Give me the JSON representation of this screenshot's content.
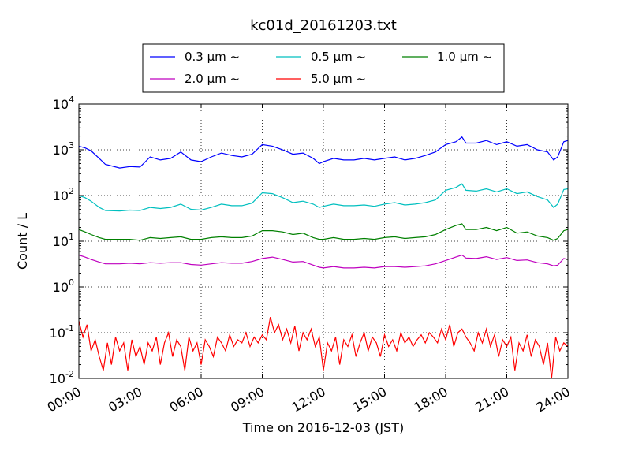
{
  "chart_data": {
    "type": "line",
    "title": "kc01d_20161203.txt",
    "xlabel": "Time on 2016-12-03 (JST)",
    "ylabel": "Count / L",
    "yscale": "log",
    "xlim": [
      0,
      24
    ],
    "ylim": [
      0.01,
      10000
    ],
    "grid": true,
    "legend_position": "top",
    "x_ticks": [
      0,
      3,
      6,
      9,
      12,
      15,
      18,
      21,
      24
    ],
    "x_tick_labels": [
      "00:00",
      "03:00",
      "06:00",
      "09:00",
      "12:00",
      "15:00",
      "18:00",
      "21:00",
      "24:00"
    ],
    "y_ticks": [
      {
        "base": "10",
        "exp": "-2",
        "value": 0.01
      },
      {
        "base": "10",
        "exp": "-1",
        "value": 0.1
      },
      {
        "base": "10",
        "exp": "0",
        "value": 1
      },
      {
        "base": "10",
        "exp": "1",
        "value": 10
      },
      {
        "base": "10",
        "exp": "2",
        "value": 100
      },
      {
        "base": "10",
        "exp": "3",
        "value": 1000
      },
      {
        "base": "10",
        "exp": "4",
        "value": 10000
      }
    ],
    "series": [
      {
        "name": "0.3 μm ~",
        "color": "#0000ff",
        "x": [
          0,
          0.3,
          0.6,
          1.0,
          1.3,
          2.0,
          2.5,
          3.0,
          3.5,
          4.0,
          4.5,
          5.0,
          5.5,
          6.0,
          6.5,
          7.0,
          7.5,
          8.0,
          8.5,
          9.0,
          9.5,
          10.0,
          10.5,
          11.0,
          11.5,
          11.8,
          12.0,
          12.5,
          13.0,
          13.5,
          14.0,
          14.5,
          15.0,
          15.5,
          16.0,
          16.5,
          17.0,
          17.5,
          18.0,
          18.5,
          18.8,
          19.0,
          19.5,
          20.0,
          20.5,
          21.0,
          21.5,
          22.0,
          22.5,
          23.0,
          23.3,
          23.5,
          23.8,
          24.0
        ],
        "y": [
          1200,
          1100,
          950,
          650,
          480,
          400,
          430,
          420,
          700,
          600,
          650,
          900,
          600,
          550,
          700,
          850,
          750,
          700,
          800,
          1300,
          1200,
          1000,
          800,
          850,
          650,
          500,
          550,
          650,
          600,
          600,
          650,
          600,
          650,
          700,
          600,
          650,
          750,
          900,
          1300,
          1500,
          1900,
          1400,
          1400,
          1600,
          1300,
          1500,
          1200,
          1300,
          1000,
          900,
          600,
          700,
          1500,
          1600
        ]
      },
      {
        "name": "0.5 μm ~",
        "color": "#00bfbf",
        "x": [
          0,
          0.3,
          0.6,
          1.0,
          1.3,
          2.0,
          2.5,
          3.0,
          3.5,
          4.0,
          4.5,
          5.0,
          5.5,
          6.0,
          6.5,
          7.0,
          7.5,
          8.0,
          8.5,
          9.0,
          9.5,
          10.0,
          10.5,
          11.0,
          11.5,
          11.8,
          12.0,
          12.5,
          13.0,
          13.5,
          14.0,
          14.5,
          15.0,
          15.5,
          16.0,
          16.5,
          17.0,
          17.5,
          18.0,
          18.5,
          18.8,
          19.0,
          19.5,
          20.0,
          20.5,
          21.0,
          21.5,
          22.0,
          22.5,
          23.0,
          23.3,
          23.5,
          23.8,
          24.0
        ],
        "y": [
          100,
          90,
          75,
          55,
          47,
          46,
          48,
          47,
          55,
          52,
          55,
          65,
          50,
          48,
          55,
          65,
          60,
          60,
          68,
          115,
          110,
          90,
          70,
          75,
          65,
          55,
          58,
          65,
          60,
          60,
          62,
          58,
          65,
          70,
          62,
          65,
          70,
          80,
          130,
          150,
          180,
          130,
          125,
          140,
          120,
          140,
          110,
          120,
          95,
          80,
          55,
          65,
          135,
          140
        ]
      },
      {
        "name": "1.0 μm ~",
        "color": "#008000",
        "x": [
          0,
          0.3,
          0.6,
          1.0,
          1.3,
          2.0,
          2.5,
          3.0,
          3.5,
          4.0,
          4.5,
          5.0,
          5.5,
          6.0,
          6.5,
          7.0,
          7.5,
          8.0,
          8.5,
          9.0,
          9.5,
          10.0,
          10.5,
          11.0,
          11.5,
          11.8,
          12.0,
          12.5,
          13.0,
          13.5,
          14.0,
          14.5,
          15.0,
          15.5,
          16.0,
          16.5,
          17.0,
          17.5,
          18.0,
          18.5,
          18.8,
          19.0,
          19.5,
          20.0,
          20.5,
          21.0,
          21.5,
          22.0,
          22.5,
          23.0,
          23.3,
          23.5,
          23.8,
          24.0
        ],
        "y": [
          18,
          16,
          14,
          12,
          11,
          11,
          11,
          10.5,
          12,
          11.5,
          12,
          12.5,
          11,
          11,
          12,
          12.5,
          12,
          12,
          13,
          17,
          17,
          16,
          14,
          15,
          12,
          11,
          11,
          12,
          11,
          11,
          11.5,
          11,
          12,
          12.5,
          11.5,
          12,
          12.5,
          14,
          18,
          22,
          24,
          18,
          18,
          20,
          17,
          20,
          15,
          16,
          13,
          12,
          10.5,
          11.5,
          17,
          18
        ]
      },
      {
        "name": "2.0 μm ~",
        "color": "#bf00bf",
        "x": [
          0,
          0.3,
          0.6,
          1.0,
          1.3,
          2.0,
          2.5,
          3.0,
          3.5,
          4.0,
          4.5,
          5.0,
          5.5,
          6.0,
          6.5,
          7.0,
          7.5,
          8.0,
          8.5,
          9.0,
          9.5,
          10.0,
          10.5,
          11.0,
          11.5,
          11.8,
          12.0,
          12.5,
          13.0,
          13.5,
          14.0,
          14.5,
          15.0,
          15.5,
          16.0,
          16.5,
          17.0,
          17.5,
          18.0,
          18.5,
          18.8,
          19.0,
          19.5,
          20.0,
          20.5,
          21.0,
          21.5,
          22.0,
          22.5,
          23.0,
          23.3,
          23.5,
          23.8,
          24.0
        ],
        "y": [
          5,
          4.5,
          4,
          3.5,
          3.2,
          3.2,
          3.3,
          3.2,
          3.4,
          3.3,
          3.4,
          3.4,
          3.1,
          3.0,
          3.2,
          3.4,
          3.3,
          3.3,
          3.6,
          4.2,
          4.5,
          4.0,
          3.5,
          3.6,
          3.0,
          2.7,
          2.6,
          2.8,
          2.6,
          2.6,
          2.7,
          2.6,
          2.8,
          2.8,
          2.7,
          2.8,
          2.9,
          3.2,
          3.8,
          4.5,
          5.0,
          4.3,
          4.2,
          4.6,
          4.0,
          4.4,
          3.8,
          3.9,
          3.4,
          3.2,
          2.9,
          3.0,
          4.2,
          4.0
        ]
      },
      {
        "name": "5.0 μm ~",
        "color": "#ff0000",
        "x": [
          0,
          0.2,
          0.4,
          0.6,
          0.8,
          1.0,
          1.2,
          1.4,
          1.6,
          1.8,
          2.0,
          2.2,
          2.4,
          2.6,
          2.8,
          3.0,
          3.2,
          3.4,
          3.6,
          3.8,
          4.0,
          4.2,
          4.4,
          4.6,
          4.8,
          5.0,
          5.2,
          5.4,
          5.6,
          5.8,
          6.0,
          6.2,
          6.4,
          6.6,
          6.8,
          7.0,
          7.2,
          7.4,
          7.6,
          7.8,
          8.0,
          8.2,
          8.4,
          8.6,
          8.8,
          9.0,
          9.2,
          9.4,
          9.6,
          9.8,
          10.0,
          10.2,
          10.4,
          10.6,
          10.8,
          11.0,
          11.2,
          11.4,
          11.6,
          11.8,
          12.0,
          12.2,
          12.4,
          12.6,
          12.8,
          13.0,
          13.2,
          13.4,
          13.6,
          13.8,
          14.0,
          14.2,
          14.4,
          14.6,
          14.8,
          15.0,
          15.2,
          15.4,
          15.6,
          15.8,
          16.0,
          16.2,
          16.4,
          16.6,
          16.8,
          17.0,
          17.2,
          17.4,
          17.6,
          17.8,
          18.0,
          18.2,
          18.4,
          18.6,
          18.8,
          19.0,
          19.2,
          19.4,
          19.6,
          19.8,
          20.0,
          20.2,
          20.4,
          20.6,
          20.8,
          21.0,
          21.2,
          21.4,
          21.6,
          21.8,
          22.0,
          22.2,
          22.4,
          22.6,
          22.8,
          23.0,
          23.2,
          23.4,
          23.6,
          23.8,
          24.0
        ],
        "y": [
          0.18,
          0.08,
          0.15,
          0.04,
          0.07,
          0.03,
          0.015,
          0.06,
          0.02,
          0.08,
          0.04,
          0.06,
          0.015,
          0.07,
          0.03,
          0.05,
          0.02,
          0.06,
          0.04,
          0.08,
          0.02,
          0.06,
          0.1,
          0.03,
          0.07,
          0.05,
          0.015,
          0.08,
          0.04,
          0.06,
          0.02,
          0.07,
          0.05,
          0.03,
          0.08,
          0.06,
          0.04,
          0.09,
          0.05,
          0.07,
          0.06,
          0.1,
          0.05,
          0.08,
          0.06,
          0.09,
          0.07,
          0.22,
          0.1,
          0.15,
          0.07,
          0.12,
          0.06,
          0.14,
          0.04,
          0.1,
          0.07,
          0.12,
          0.05,
          0.08,
          0.015,
          0.06,
          0.04,
          0.08,
          0.02,
          0.07,
          0.05,
          0.09,
          0.03,
          0.06,
          0.1,
          0.04,
          0.08,
          0.06,
          0.03,
          0.09,
          0.05,
          0.07,
          0.04,
          0.1,
          0.06,
          0.08,
          0.05,
          0.07,
          0.09,
          0.06,
          0.1,
          0.08,
          0.06,
          0.12,
          0.07,
          0.15,
          0.05,
          0.1,
          0.12,
          0.08,
          0.06,
          0.04,
          0.1,
          0.06,
          0.12,
          0.05,
          0.09,
          0.03,
          0.07,
          0.05,
          0.08,
          0.015,
          0.06,
          0.04,
          0.09,
          0.03,
          0.07,
          0.05,
          0.02,
          0.06,
          0.01,
          0.08,
          0.04,
          0.06,
          0.05
        ]
      }
    ]
  }
}
